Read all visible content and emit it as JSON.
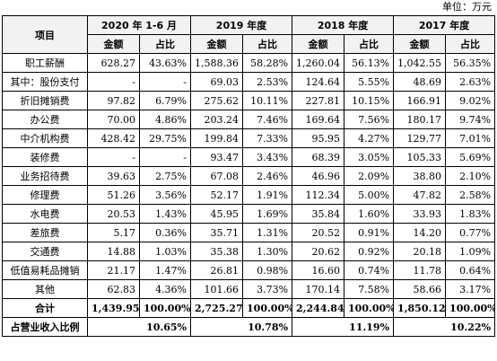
{
  "unit_label": "单位：万元",
  "header": {
    "item_label": "项目",
    "periods": [
      "2020 年 1-6 月",
      "2019 年度",
      "2018 年度",
      "2017 年度"
    ],
    "amount_label": "金额",
    "ratio_label": "占比"
  },
  "rows": [
    {
      "item": "职工薪酬",
      "cells": [
        "628.27",
        "43.63%",
        "1,588.36",
        "58.28%",
        "1,260.04",
        "56.13%",
        "1,042.55",
        "56.35%"
      ]
    },
    {
      "item": "其中：股份支付",
      "cells": [
        "-",
        "-",
        "69.03",
        "2.53%",
        "124.64",
        "5.55%",
        "48.69",
        "2.63%"
      ]
    },
    {
      "item": "折旧摊销费",
      "cells": [
        "97.82",
        "6.79%",
        "275.62",
        "10.11%",
        "227.81",
        "10.15%",
        "166.91",
        "9.02%"
      ]
    },
    {
      "item": "办公费",
      "cells": [
        "70.00",
        "4.86%",
        "203.24",
        "7.46%",
        "169.64",
        "7.56%",
        "180.17",
        "9.74%"
      ]
    },
    {
      "item": "中介机构费",
      "cells": [
        "428.42",
        "29.75%",
        "199.84",
        "7.33%",
        "95.95",
        "4.27%",
        "129.77",
        "7.01%"
      ]
    },
    {
      "item": "装修费",
      "cells": [
        "-",
        "-",
        "93.47",
        "3.43%",
        "68.39",
        "3.05%",
        "105.33",
        "5.69%"
      ]
    },
    {
      "item": "业务招待费",
      "cells": [
        "39.63",
        "2.75%",
        "67.08",
        "2.46%",
        "46.96",
        "2.09%",
        "38.80",
        "2.10%"
      ]
    },
    {
      "item": "修理费",
      "cells": [
        "51.26",
        "3.56%",
        "52.17",
        "1.91%",
        "112.34",
        "5.00%",
        "47.82",
        "2.58%"
      ]
    },
    {
      "item": "水电费",
      "cells": [
        "20.53",
        "1.43%",
        "45.95",
        "1.69%",
        "35.84",
        "1.60%",
        "33.93",
        "1.83%"
      ]
    },
    {
      "item": "差旅费",
      "cells": [
        "5.17",
        "0.36%",
        "35.71",
        "1.31%",
        "20.52",
        "0.91%",
        "14.20",
        "0.77%"
      ]
    },
    {
      "item": "交通费",
      "cells": [
        "14.88",
        "1.03%",
        "35.38",
        "1.30%",
        "20.62",
        "0.92%",
        "20.18",
        "1.09%"
      ]
    },
    {
      "item": "低值易耗品摊销",
      "cells": [
        "21.17",
        "1.47%",
        "26.81",
        "0.98%",
        "16.60",
        "0.74%",
        "11.78",
        "0.64%"
      ]
    },
    {
      "item": "其他",
      "cells": [
        "62.83",
        "4.36%",
        "101.66",
        "3.73%",
        "170.14",
        "7.58%",
        "58.66",
        "3.17%"
      ]
    }
  ],
  "total": {
    "item": "合计",
    "cells": [
      "1,439.95",
      "100.00%",
      "2,725.27",
      "100.00%",
      "2,244.84",
      "100.00%",
      "1,850.12",
      "100.00%"
    ]
  },
  "revenue_ratio": {
    "item": "占营业收入比例",
    "cells": [
      "10.65%",
      "10.78%",
      "11.19%",
      "10.22%"
    ]
  }
}
